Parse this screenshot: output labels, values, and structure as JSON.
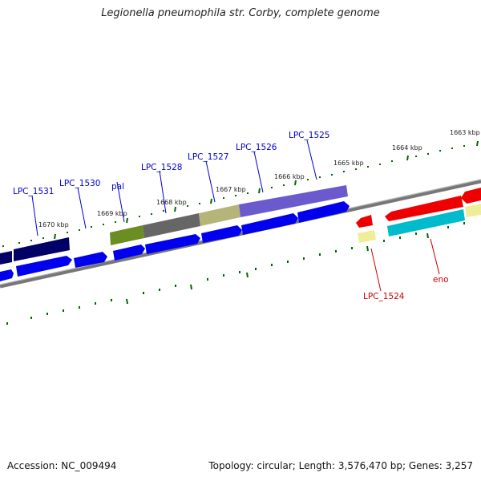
{
  "title": "Legionella pneumophila str. Corby, complete genome",
  "footer": {
    "accession": "Accession: NC_009494",
    "summary": "Topology: circular; Length: 3,576,470 bp; Genes: 3,257"
  },
  "scale_ticks": [
    "1670 kbp",
    "1669 kbp",
    "1668 kbp",
    "1667 kbp",
    "1666 kbp",
    "1665 kbp",
    "1664 kbp",
    "1663 kbp"
  ],
  "gene_labels": {
    "forward": [
      "LPC_1531",
      "LPC_1530",
      "pal",
      "LPC_1528",
      "LPC_1527",
      "LPC_1526",
      "LPC_1525"
    ],
    "reverse": [
      "LPC_1524",
      "eno"
    ]
  },
  "colors": {
    "label_blue": "#0000cc",
    "label_red": "#cc0000",
    "tick_green": "#006600",
    "backbone": "#888888",
    "cds_blue": "#0000ee",
    "navy": "#000066",
    "olive": "#6b8e23",
    "gray": "#666666",
    "khaki": "#b5b57a",
    "lavender": "#6a5acd",
    "red": "#ee0000",
    "cyan": "#00bbcc",
    "pale_yellow": "#eeee99"
  }
}
